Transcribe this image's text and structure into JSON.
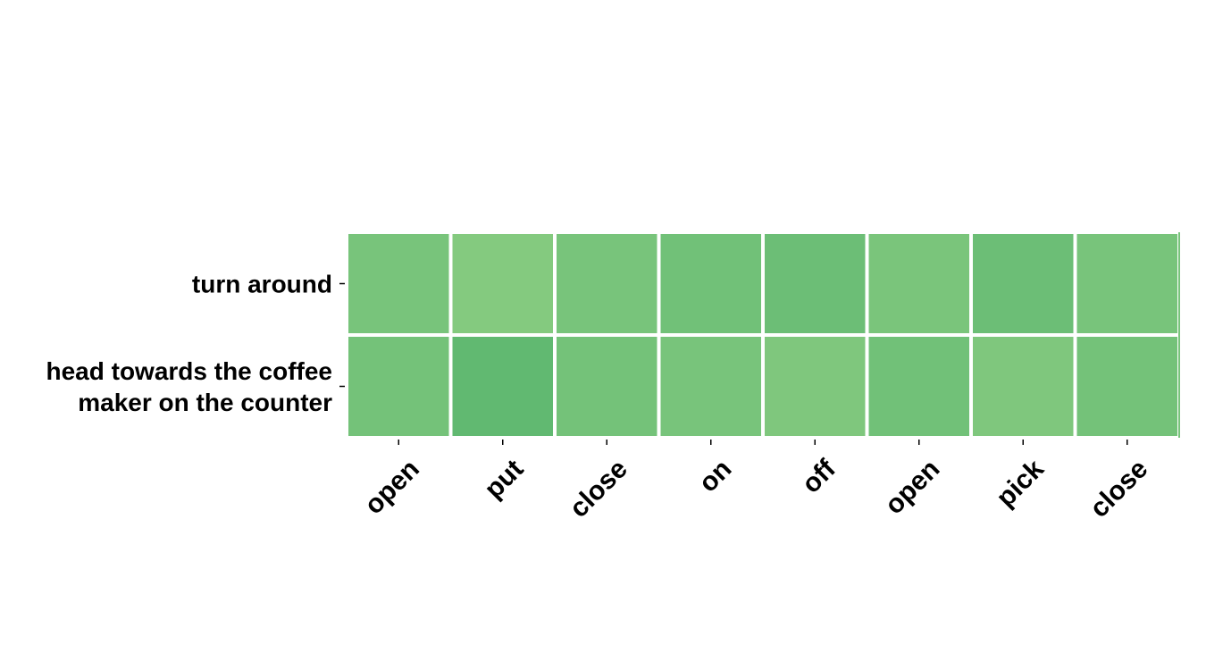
{
  "chart_data": {
    "type": "heatmap",
    "title": "",
    "xlabel": "",
    "ylabel": "",
    "x_categories": [
      "open",
      "put",
      "close",
      "on",
      "off",
      "open",
      "pick",
      "close"
    ],
    "y_categories": [
      "turn around",
      "head towards the coffee maker on the counter"
    ],
    "y_label_lines": [
      [
        "turn around"
      ],
      [
        "head towards the coffee",
        "maker on the counter"
      ]
    ],
    "values": [
      [
        0.5,
        0.35,
        0.5,
        0.58,
        0.65,
        0.47,
        0.65,
        0.5
      ],
      [
        0.55,
        0.78,
        0.55,
        0.5,
        0.42,
        0.58,
        0.42,
        0.55
      ]
    ],
    "colormap": {
      "low": "#a1d88b",
      "high": "#4fb06a"
    },
    "grid": false,
    "legend": "none",
    "cell_border_color": "#ffffff"
  }
}
